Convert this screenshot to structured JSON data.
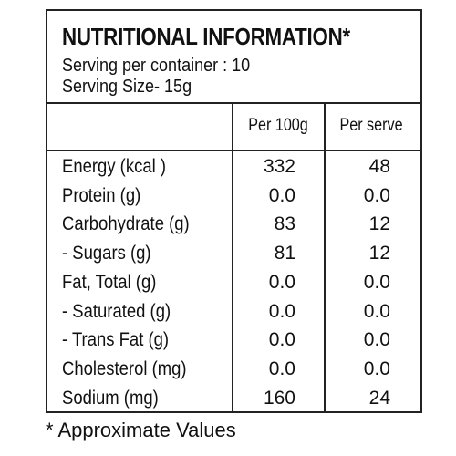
{
  "header": {
    "title": "NUTRITIONAL INFORMATION*",
    "lines": [
      "Serving per container : 10",
      "Serving Size- 15g"
    ]
  },
  "table": {
    "columns": [
      "Per 100g",
      "Per serve"
    ],
    "rows": [
      [
        "Energy (kcal )",
        "332",
        "48"
      ],
      [
        "Protein (g)",
        "0.0",
        "0.0"
      ],
      [
        "Carbohydrate (g)",
        "83",
        "12"
      ],
      [
        "- Sugars (g)",
        "81",
        "12"
      ],
      [
        "Fat, Total (g)",
        "0.0",
        "0.0"
      ],
      [
        "- Saturated (g)",
        "0.0",
        "0.0"
      ],
      [
        "- Trans Fat (g)",
        "0.0",
        "0.0"
      ],
      [
        "Cholesterol (mg)",
        "0.0",
        "0.0"
      ],
      [
        "Sodium (mg)",
        "160",
        "24"
      ]
    ]
  },
  "footnote": "* Approximate Values"
}
